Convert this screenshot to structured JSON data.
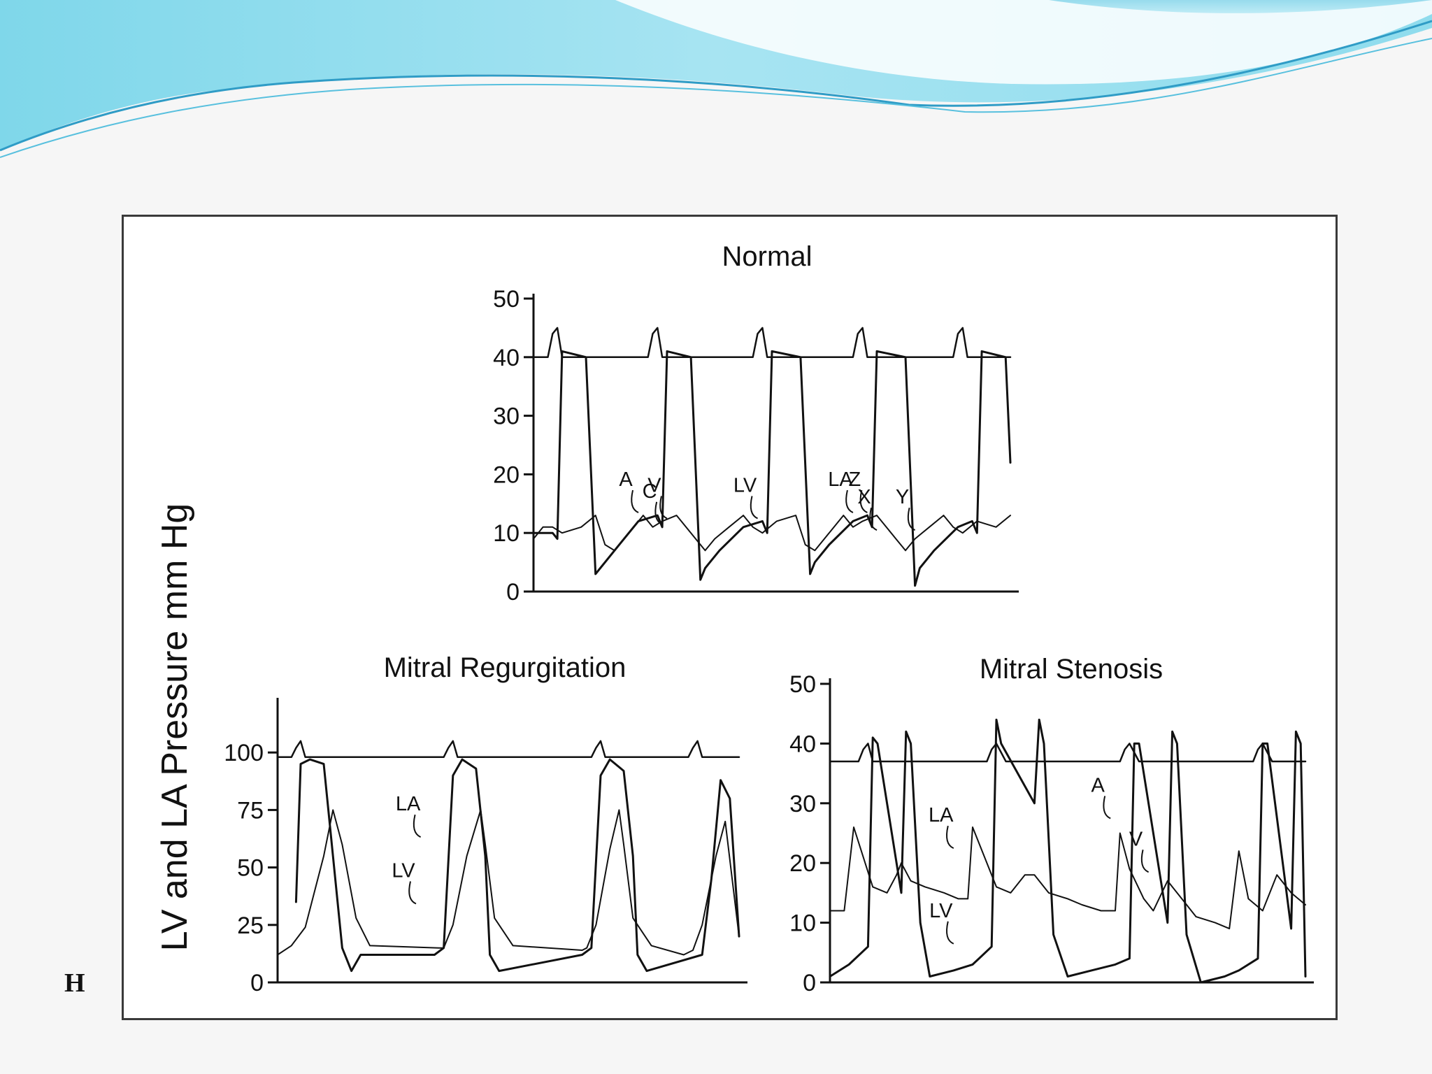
{
  "slide": {
    "mark": "H",
    "colors": {
      "wave_light": "#a6e6f3",
      "wave_mid": "#6fcde4",
      "wave_dark": "#2d9ec4",
      "frame": "#3a3a3a"
    }
  },
  "figure": {
    "ylabel": "LV and LA Pressure mm Hg"
  },
  "chart_data": [
    {
      "type": "line",
      "title": "Normal",
      "ylim": [
        0,
        50
      ],
      "yticks": [
        "0",
        "10",
        "20",
        "30",
        "40",
        "50"
      ],
      "xlim": [
        0,
        100
      ],
      "series": [
        {
          "name": "LV",
          "x": [
            0,
            4,
            5,
            6,
            11,
            13,
            14,
            17,
            22,
            26,
            27,
            28,
            33,
            35,
            36,
            39,
            44,
            48,
            49,
            50,
            56,
            58,
            59,
            62,
            67,
            70,
            71,
            72,
            78,
            80,
            81,
            84,
            89,
            92,
            93,
            94,
            99,
            100
          ],
          "y": [
            10,
            10,
            9,
            41,
            40,
            3,
            4,
            7,
            12,
            13,
            11,
            41,
            40,
            2,
            4,
            7,
            11,
            12,
            10,
            41,
            40,
            3,
            5,
            8,
            12,
            13,
            11,
            41,
            40,
            1,
            4,
            7,
            11,
            12,
            10,
            41,
            40,
            22
          ]
        },
        {
          "name": "LA",
          "x": [
            0,
            2,
            4,
            6,
            10,
            13,
            15,
            17,
            20,
            23,
            25,
            27,
            30,
            34,
            36,
            38,
            41,
            44,
            46,
            48,
            51,
            55,
            57,
            59,
            62,
            65,
            67,
            69,
            72,
            76,
            78,
            80,
            83,
            86,
            88,
            90,
            93,
            97,
            100
          ],
          "y": [
            9,
            11,
            11,
            10,
            11,
            13,
            8,
            7,
            10,
            13,
            11,
            12,
            13,
            9,
            7,
            9,
            11,
            13,
            11,
            10,
            12,
            13,
            8,
            7,
            10,
            13,
            11,
            12,
            13,
            9,
            7,
            9,
            11,
            13,
            11,
            10,
            12,
            11,
            13
          ]
        },
        {
          "name": "ECG",
          "x": [
            0,
            3,
            4,
            5,
            6,
            8,
            20,
            24,
            25,
            26,
            27,
            29,
            42,
            46,
            47,
            48,
            49,
            51,
            63,
            67,
            68,
            69,
            70,
            72,
            85,
            88,
            89,
            90,
            91,
            93,
            100
          ],
          "y": [
            40,
            40,
            44,
            45,
            40,
            40,
            40,
            40,
            44,
            45,
            40,
            40,
            40,
            40,
            44,
            45,
            40,
            40,
            40,
            40,
            44,
            45,
            40,
            40,
            40,
            40,
            44,
            45,
            40,
            40,
            40
          ]
        }
      ],
      "annotations": [
        {
          "text": "A",
          "x": 22,
          "y": 13
        },
        {
          "text": "V",
          "x": 28,
          "y": 12
        },
        {
          "text": "C",
          "x": 27,
          "y": 11
        },
        {
          "text": "LV",
          "x": 47,
          "y": 12
        },
        {
          "text": "LA",
          "x": 67,
          "y": 13
        },
        {
          "text": "Z",
          "x": 70,
          "y": 13
        },
        {
          "text": "X",
          "x": 72,
          "y": 10
        },
        {
          "text": "Y",
          "x": 80,
          "y": 10
        }
      ]
    },
    {
      "type": "line",
      "title": "Mitral Regurgitation",
      "ylim": [
        0,
        125
      ],
      "yticks": [
        "0",
        "25",
        "50",
        "75",
        "100"
      ],
      "xlim": [
        0,
        100
      ],
      "series": [
        {
          "name": "LA",
          "x": [
            0,
            3,
            6,
            10,
            12,
            14,
            17,
            20,
            35,
            36,
            38,
            41,
            44,
            45,
            47,
            51,
            66,
            67,
            69,
            72,
            74,
            75,
            77,
            81,
            88,
            90,
            92,
            95,
            97,
            100
          ],
          "y": [
            12,
            16,
            24,
            55,
            75,
            60,
            28,
            16,
            15,
            15,
            25,
            55,
            75,
            60,
            28,
            16,
            14,
            15,
            25,
            58,
            75,
            60,
            28,
            16,
            12,
            14,
            25,
            55,
            70,
            20
          ],
          "label": "LA"
        },
        {
          "name": "LV",
          "x": [
            4,
            5,
            7,
            10,
            12,
            14,
            16,
            18,
            34,
            36,
            38,
            40,
            43,
            45,
            46,
            48,
            66,
            68,
            70,
            72,
            75,
            77,
            78,
            80,
            92,
            94,
            96,
            98,
            100
          ],
          "y": [
            35,
            95,
            97,
            95,
            55,
            15,
            5,
            12,
            12,
            15,
            90,
            97,
            93,
            55,
            12,
            5,
            12,
            15,
            90,
            97,
            92,
            55,
            12,
            5,
            12,
            45,
            88,
            80,
            20
          ],
          "label": "LV"
        },
        {
          "name": "ECG",
          "x": [
            0,
            3,
            4,
            5,
            6,
            8,
            34,
            36,
            37,
            38,
            39,
            41,
            66,
            68,
            69,
            70,
            71,
            73,
            87,
            89,
            90,
            91,
            92,
            94,
            100
          ],
          "y": [
            98,
            98,
            102,
            105,
            98,
            98,
            98,
            98,
            102,
            105,
            98,
            98,
            98,
            98,
            102,
            105,
            98,
            98,
            98,
            98,
            102,
            105,
            98,
            98,
            98
          ]
        }
      ],
      "annotations": [
        {
          "text": "LA",
          "x": 31,
          "y": 62
        },
        {
          "text": "LV",
          "x": 30,
          "y": 33
        }
      ]
    },
    {
      "type": "line",
      "title": "Mitral Stenosis",
      "ylim": [
        0,
        50
      ],
      "yticks": [
        "0",
        "10",
        "20",
        "30",
        "40",
        "50"
      ],
      "xlim": [
        0,
        100
      ],
      "series": [
        {
          "name": "LA",
          "x": [
            0,
            3,
            5,
            7,
            9,
            12,
            14,
            15,
            17,
            20,
            24,
            27,
            29,
            30,
            32,
            35,
            38,
            41,
            43,
            46,
            50,
            53,
            57,
            60,
            61,
            63,
            66,
            68,
            71,
            74,
            77,
            81,
            84,
            86,
            88,
            91,
            94,
            97,
            100
          ],
          "y": [
            12,
            12,
            26,
            21,
            16,
            15,
            18,
            20,
            17,
            16,
            15,
            14,
            14,
            26,
            22,
            16,
            15,
            18,
            18,
            15,
            14,
            13,
            12,
            12,
            25,
            19,
            14,
            12,
            17,
            14,
            11,
            10,
            9,
            22,
            14,
            12,
            18,
            15,
            13
          ]
        },
        {
          "name": "LV",
          "x": [
            0,
            4,
            8,
            9,
            10,
            15,
            16,
            17,
            19,
            21,
            26,
            30,
            34,
            35,
            36,
            43,
            44,
            45,
            47,
            50,
            55,
            60,
            63,
            64,
            65,
            71,
            72,
            73,
            75,
            78,
            83,
            86,
            90,
            91,
            92,
            97,
            98,
            99,
            100
          ],
          "y": [
            1,
            3,
            6,
            41,
            40,
            15,
            42,
            40,
            10,
            1,
            2,
            3,
            6,
            44,
            40,
            30,
            44,
            40,
            8,
            1,
            2,
            3,
            4,
            40,
            40,
            10,
            42,
            40,
            8,
            0,
            1,
            2,
            4,
            40,
            40,
            9,
            42,
            40,
            1
          ],
          "label": "LV"
        },
        {
          "name": "ECG",
          "x": [
            0,
            6,
            7,
            8,
            9,
            11,
            32,
            33,
            34,
            35,
            37,
            60,
            61,
            62,
            63,
            65,
            88,
            89,
            90,
            91,
            93,
            100
          ],
          "y": [
            37,
            37,
            39,
            40,
            37,
            37,
            37,
            37,
            39,
            40,
            37,
            37,
            37,
            39,
            40,
            37,
            37,
            37,
            39,
            40,
            37,
            37
          ]
        }
      ],
      "annotations": [
        {
          "text": "LA",
          "x": 26,
          "y": 22
        },
        {
          "text": "LV",
          "x": 26,
          "y": 6
        },
        {
          "text": "A",
          "x": 59,
          "y": 27
        },
        {
          "text": "V",
          "x": 67,
          "y": 18
        }
      ]
    }
  ]
}
